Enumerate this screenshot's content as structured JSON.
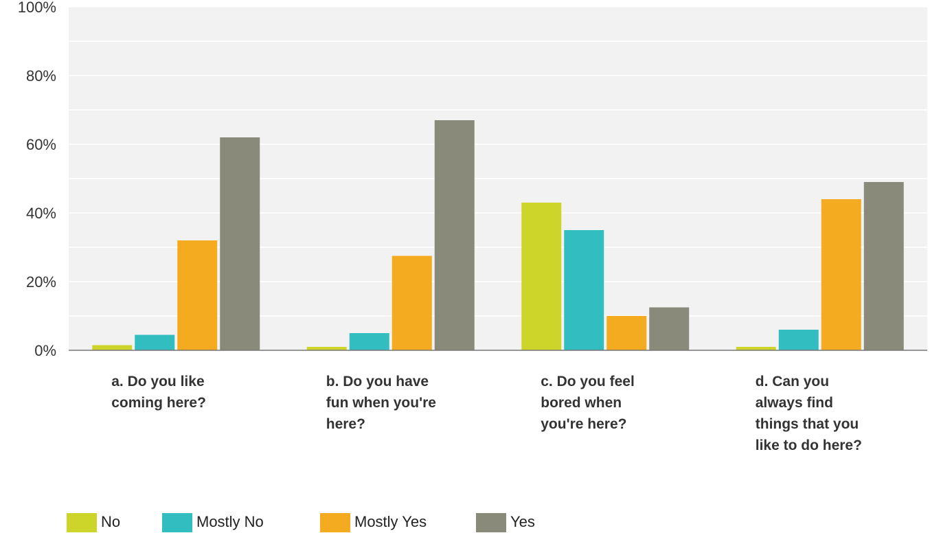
{
  "chart_data": {
    "type": "bar",
    "categories": [
      [
        "a. Do you like",
        "coming here?"
      ],
      [
        "b. Do you have",
        "fun when you're",
        "here?"
      ],
      [
        "c. Do you feel",
        "bored when",
        "you're here?"
      ],
      [
        "d. Can you",
        "always find",
        "things that you",
        "like to do here?"
      ]
    ],
    "series": [
      {
        "name": "No",
        "color": "#cdd52a",
        "values": [
          1.5,
          1,
          43,
          1
        ]
      },
      {
        "name": "Mostly No",
        "color": "#32bec0",
        "values": [
          4.5,
          5,
          35,
          6
        ]
      },
      {
        "name": "Mostly Yes",
        "color": "#f4ab20",
        "values": [
          32,
          27.5,
          10,
          44
        ]
      },
      {
        "name": "Yes",
        "color": "#8a8a7a",
        "values": [
          62,
          67,
          12.5,
          49
        ]
      }
    ],
    "yticks": [
      "0%",
      "20%",
      "40%",
      "60%",
      "80%",
      "100%"
    ],
    "ylim": [
      0,
      100
    ],
    "grid": true,
    "legend_position": "bottom"
  }
}
